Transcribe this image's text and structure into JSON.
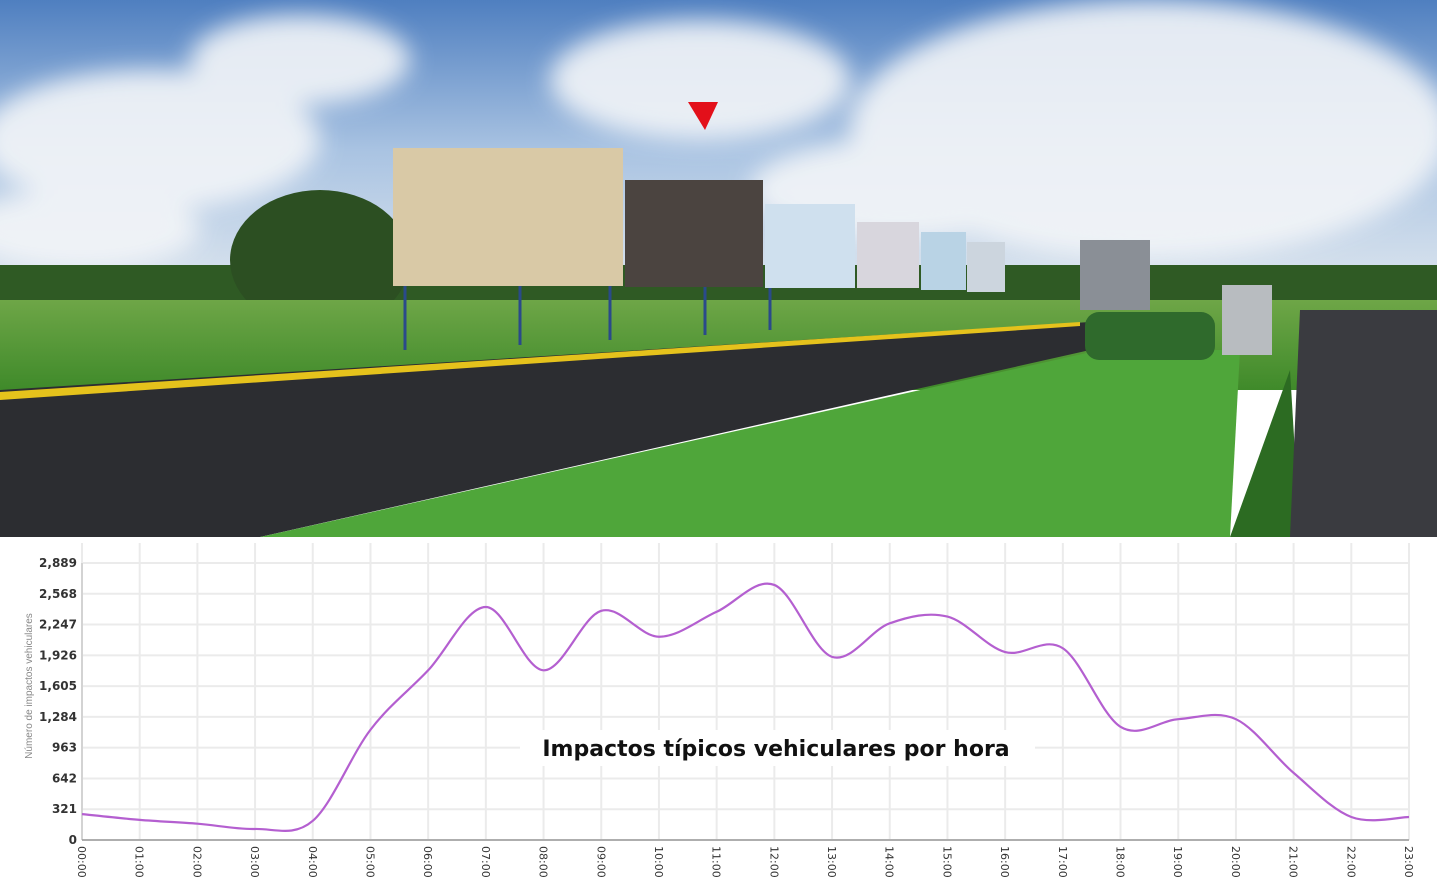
{
  "photo": {
    "marker_color": "#e3101a"
  },
  "chart_data": {
    "type": "line",
    "title": "Impactos típicos vehiculares por hora",
    "xlabel": "",
    "ylabel": "Número de impactos vehiculares",
    "categories": [
      "00:00",
      "01:00",
      "02:00",
      "03:00",
      "04:00",
      "05:00",
      "06:00",
      "07:00",
      "08:00",
      "09:00",
      "10:00",
      "11:00",
      "12:00",
      "13:00",
      "14:00",
      "15:00",
      "16:00",
      "17:00",
      "18:00",
      "19:00",
      "20:00",
      "21:00",
      "22:00",
      "23:00"
    ],
    "values": [
      270,
      210,
      170,
      115,
      200,
      1150,
      1770,
      2430,
      1770,
      2390,
      2120,
      2380,
      2660,
      1910,
      2260,
      2330,
      1960,
      2000,
      1180,
      1260,
      1260,
      700,
      240,
      240
    ],
    "yticks": [
      "0",
      "321",
      "642",
      "963",
      "1,284",
      "1,605",
      "1,926",
      "2,247",
      "2,568",
      "2,889"
    ],
    "ylim": [
      0,
      2889
    ],
    "grid": true,
    "line_color": "#b45fd0"
  }
}
